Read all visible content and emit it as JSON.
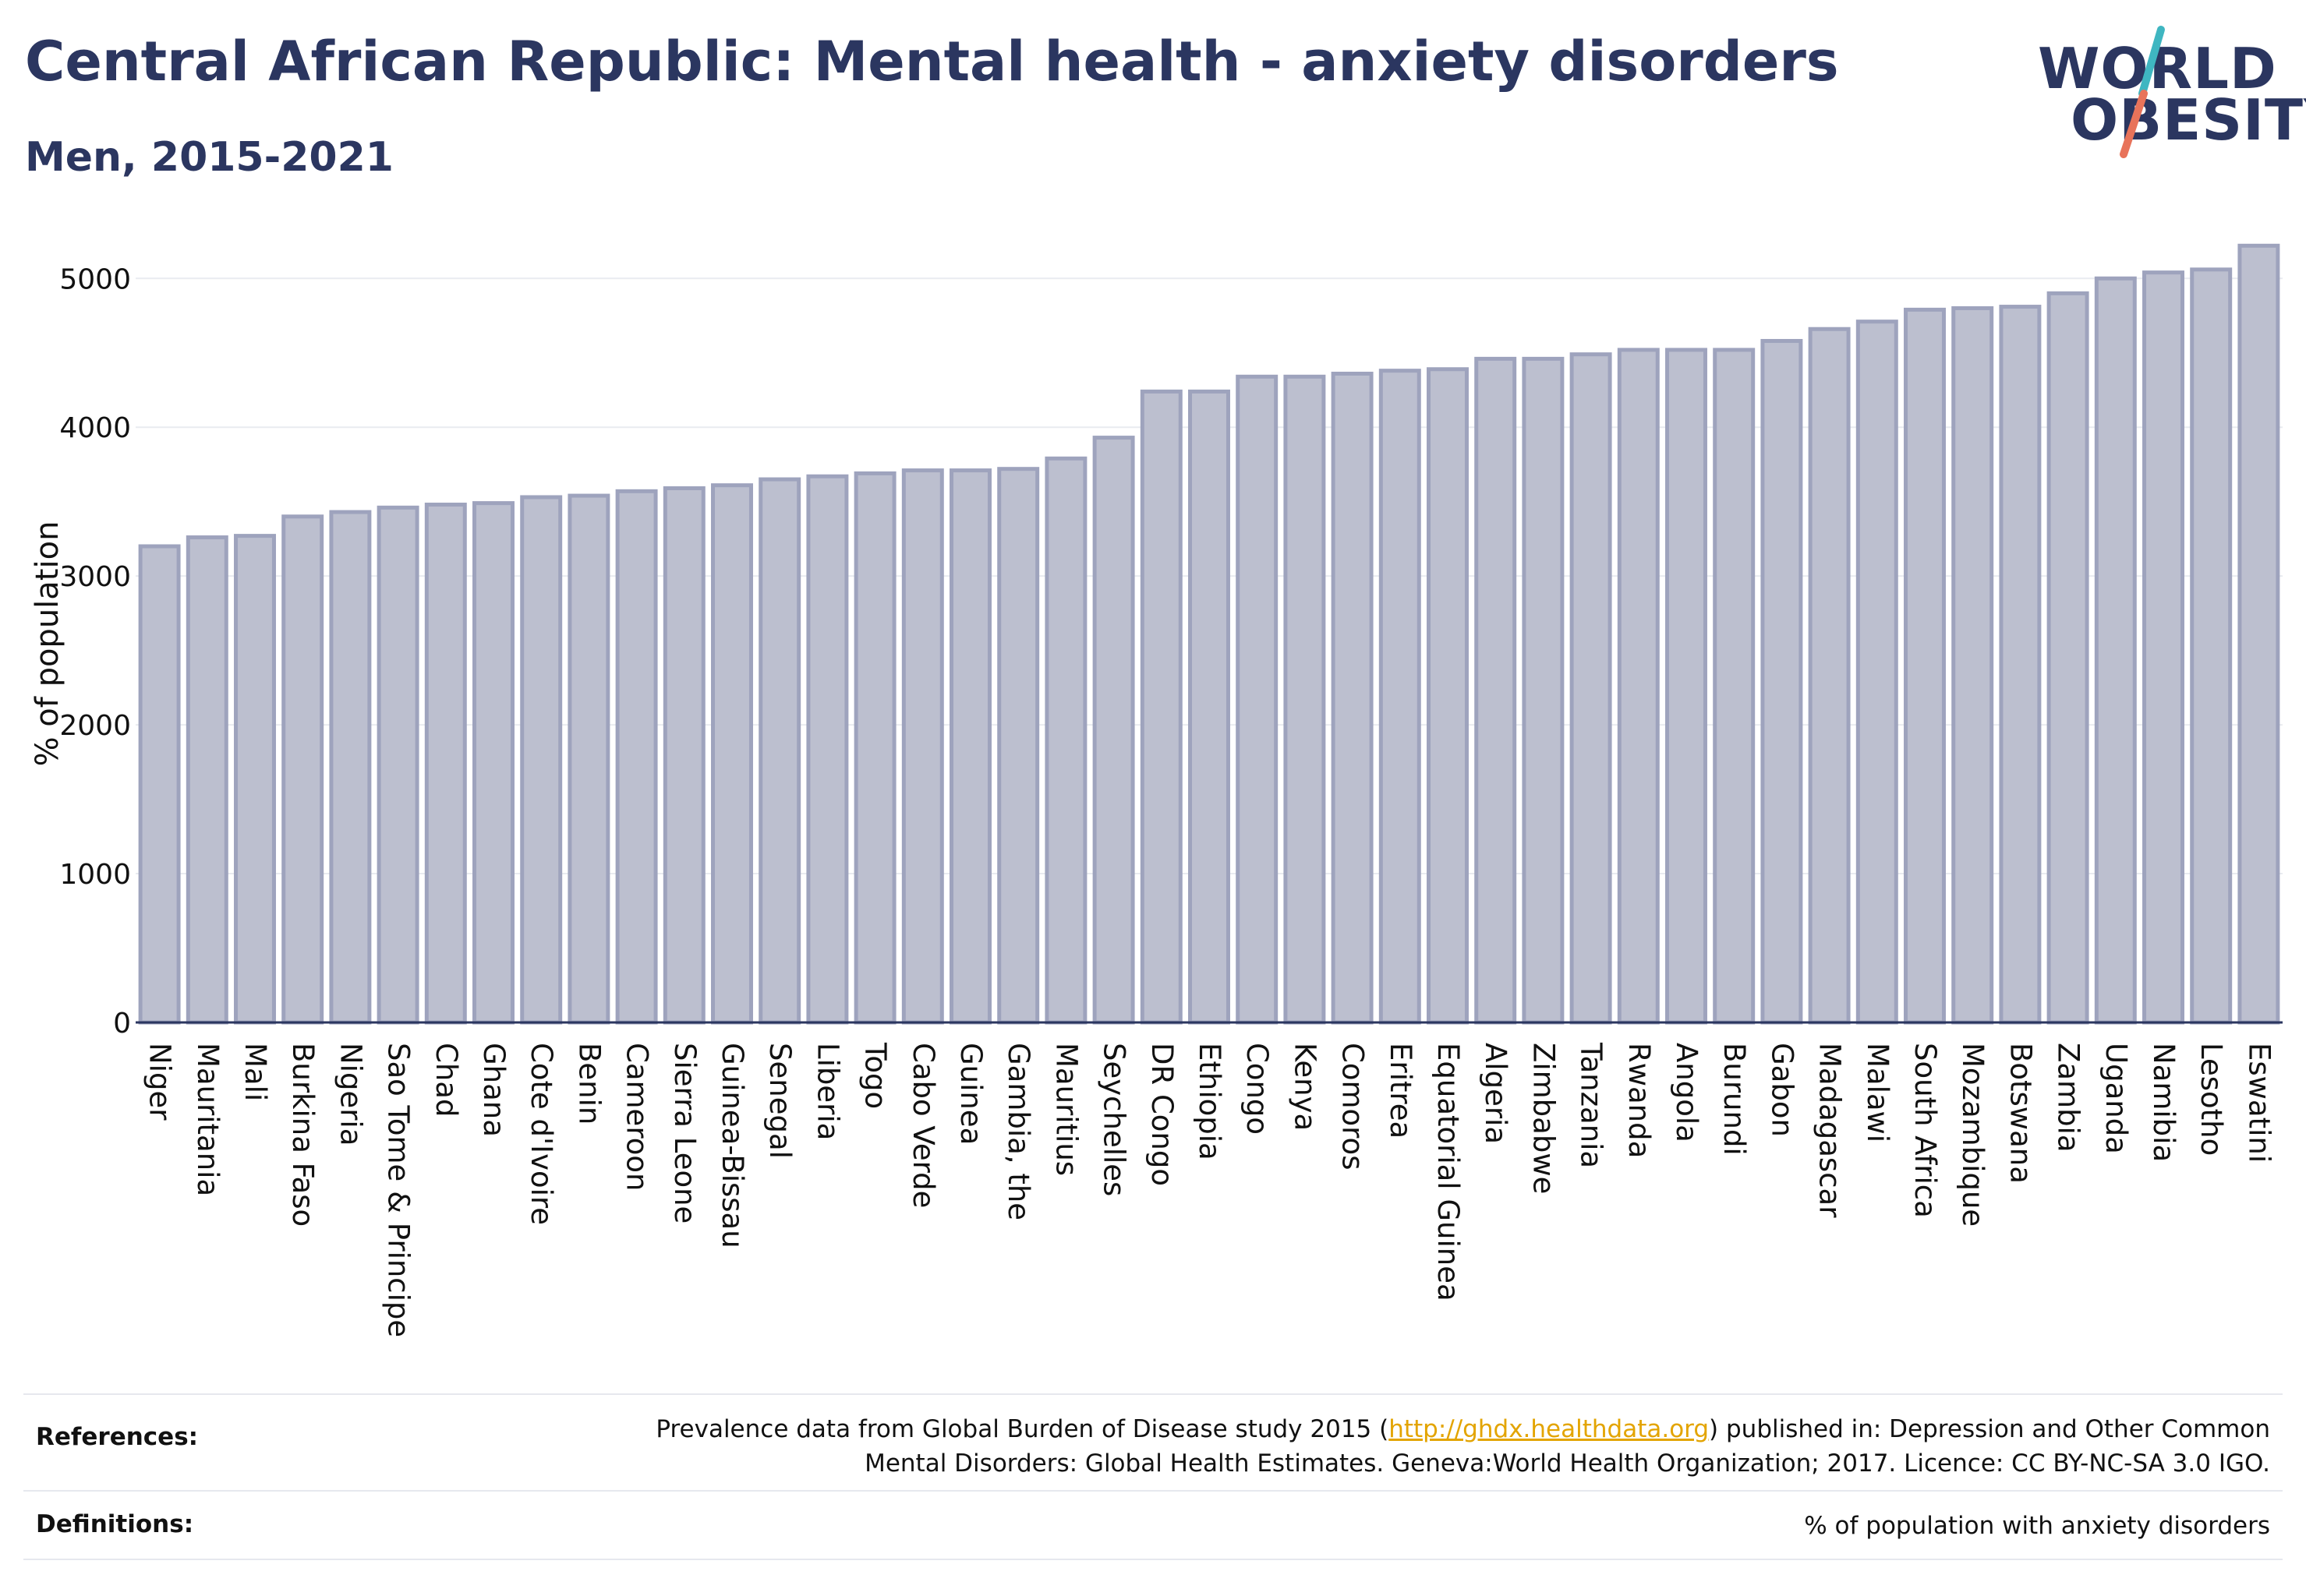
{
  "header": {
    "title": "Central African Republic: Mental health - anxiety disorders",
    "subtitle": "Men, 2015-2021"
  },
  "logo": {
    "line1": "WORLD",
    "line2": "OBESITY",
    "slash_colors": [
      "#3fb6c1",
      "#e8735a"
    ]
  },
  "colors": {
    "bar_fill": "#bcbfcf",
    "bar_stroke": "#9ea3bd",
    "text": "#2b3660",
    "grid": "#e9ebf0",
    "axis": "#2b3660"
  },
  "chart_data": {
    "type": "bar",
    "title": "",
    "xlabel": "",
    "ylabel": "% of population",
    "ylim": [
      0,
      5300
    ],
    "yticks": [
      0,
      1000,
      2000,
      3000,
      4000,
      5000
    ],
    "grid": true,
    "categories": [
      "Niger",
      "Mauritania",
      "Mali",
      "Burkina Faso",
      "Nigeria",
      "Sao Tome & Principe",
      "Chad",
      "Ghana",
      "Cote d'Ivoire",
      "Benin",
      "Cameroon",
      "Sierra Leone",
      "Guinea-Bissau",
      "Senegal",
      "Liberia",
      "Togo",
      "Cabo Verde",
      "Guinea",
      "Gambia, the",
      "Mauritius",
      "Seychelles",
      "DR Congo",
      "Ethiopia",
      "Congo",
      "Kenya",
      "Comoros",
      "Eritrea",
      "Equatorial Guinea",
      "Algeria",
      "Zimbabwe",
      "Tanzania",
      "Rwanda",
      "Angola",
      "Burundi",
      "Gabon",
      "Madagascar",
      "Malawi",
      "South Africa",
      "Mozambique",
      "Botswana",
      "Zambia",
      "Uganda",
      "Namibia",
      "Lesotho",
      "Eswatini"
    ],
    "values": [
      3200,
      3260,
      3270,
      3400,
      3430,
      3460,
      3480,
      3490,
      3530,
      3540,
      3570,
      3590,
      3610,
      3650,
      3670,
      3690,
      3710,
      3710,
      3720,
      3790,
      3930,
      4240,
      4240,
      4340,
      4340,
      4360,
      4380,
      4390,
      4460,
      4460,
      4490,
      4520,
      4520,
      4520,
      4580,
      4660,
      4710,
      4790,
      4800,
      4810,
      4900,
      5000,
      5040,
      5060,
      5220
    ]
  },
  "references": {
    "label": "References:",
    "text_before": "Prevalence data from Global Burden of Disease study 2015 (",
    "link": "http://ghdx.healthdata.org",
    "text_after": ") published in: Depression and Other Common",
    "line2": "Mental Disorders: Global Health Estimates. Geneva:World Health Organization; 2017. Licence: CC BY-NC-SA 3.0 IGO."
  },
  "definitions": {
    "label": "Definitions:",
    "text": "% of population with anxiety disorders"
  }
}
